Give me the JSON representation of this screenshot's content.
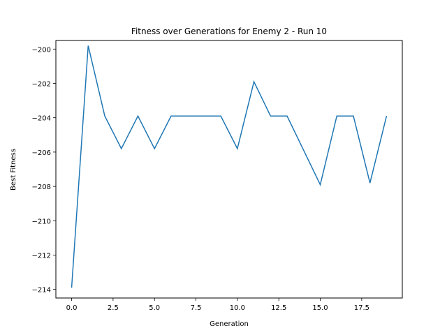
{
  "chart_data": {
    "type": "line",
    "title": "Fitness over Generations for Enemy 2 - Run 10",
    "xlabel": "Generation",
    "ylabel": "Best Fitness",
    "xlim": [
      -0.95,
      19.95
    ],
    "ylim": [
      -214.5,
      -199.5
    ],
    "xticks": [
      0.0,
      2.5,
      5.0,
      7.5,
      10.0,
      12.5,
      15.0,
      17.5
    ],
    "xtick_labels": [
      "0.0",
      "2.5",
      "5.0",
      "7.5",
      "10.0",
      "12.5",
      "15.0",
      "17.5"
    ],
    "yticks": [
      -214,
      -212,
      -210,
      -208,
      -206,
      -204,
      -202,
      -200
    ],
    "ytick_labels": [
      "−214",
      "−212",
      "−210",
      "−208",
      "−206",
      "−204",
      "−202",
      "−200"
    ],
    "grid": false,
    "series": [
      {
        "color": "#1f77b4",
        "x": [
          0,
          1,
          2,
          3,
          4,
          5,
          6,
          7,
          8,
          9,
          10,
          11,
          12,
          13,
          14,
          15,
          16,
          17,
          18,
          19
        ],
        "y": [
          -213.9,
          -199.8,
          -203.9,
          -205.8,
          -203.9,
          -205.8,
          -203.9,
          -203.9,
          -203.9,
          -203.9,
          -205.8,
          -201.9,
          -203.9,
          -203.9,
          -205.9,
          -207.9,
          -203.9,
          -203.9,
          -207.8,
          -203.9
        ]
      }
    ]
  }
}
